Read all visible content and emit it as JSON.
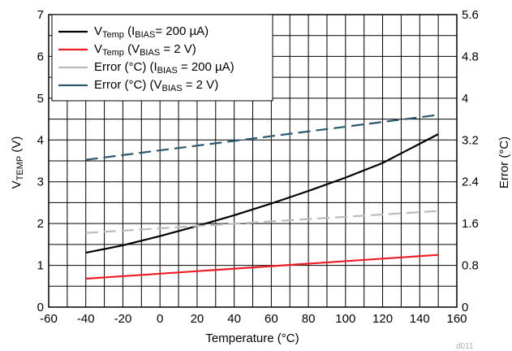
{
  "chart_data": {
    "type": "line",
    "xlabel": "Temperature (°C)",
    "ylabel_left": {
      "main": "V",
      "sub": "TEMP",
      "rest": " (V)"
    },
    "ylabel_right": "Error (°C)",
    "xlim": [
      -60,
      160
    ],
    "xticks": [
      "-60",
      "-40",
      "-20",
      "0",
      "20",
      "40",
      "60",
      "80",
      "100",
      "120",
      "140",
      "160"
    ],
    "ylim_left": [
      0,
      7
    ],
    "yticks_left": [
      "0",
      "1",
      "2",
      "3",
      "4",
      "5",
      "6",
      "7"
    ],
    "ylim_right": [
      0,
      5.6
    ],
    "yticks_right": [
      "0",
      "0.8",
      "1.6",
      "2.4",
      "3.2",
      "4",
      "4.8",
      "5.6"
    ],
    "grid": true,
    "legend_position": "top-left",
    "figure_id": "d011",
    "series": [
      {
        "legend": {
          "a": "V",
          "b": "Temp",
          "c": " (I",
          "d": "BIAS",
          "e": "= 200 µA)"
        },
        "axis": "left",
        "color": "#000000",
        "dashed": false,
        "x": [
          -40,
          -20,
          0,
          20,
          40,
          60,
          80,
          100,
          120,
          150
        ],
        "y": [
          1.3,
          1.48,
          1.7,
          1.94,
          2.2,
          2.48,
          2.78,
          3.1,
          3.45,
          4.14
        ]
      },
      {
        "legend": {
          "a": "V",
          "b": "Temp",
          "c": " (V",
          "d": "BIAS",
          "e": " = 2 V)"
        },
        "axis": "left",
        "color": "#ee1c25",
        "dashed": false,
        "x": [
          -40,
          150
        ],
        "y": [
          0.68,
          1.25
        ]
      },
      {
        "legend": {
          "a": "Error (°C) (I",
          "b": "",
          "c": "",
          "d": "BIAS",
          "e": " = 200 µA)"
        },
        "axis": "right",
        "color": "#bbbbbb",
        "dashed": true,
        "x": [
          -40,
          150
        ],
        "y": [
          1.42,
          1.84
        ]
      },
      {
        "legend": {
          "a": "Error (°C) (V",
          "b": "",
          "c": "",
          "d": "BIAS",
          "e": " = 2 V)"
        },
        "axis": "right",
        "color": "#2b5a70",
        "dashed": true,
        "x": [
          -40,
          150
        ],
        "y": [
          2.82,
          3.68
        ]
      }
    ]
  }
}
